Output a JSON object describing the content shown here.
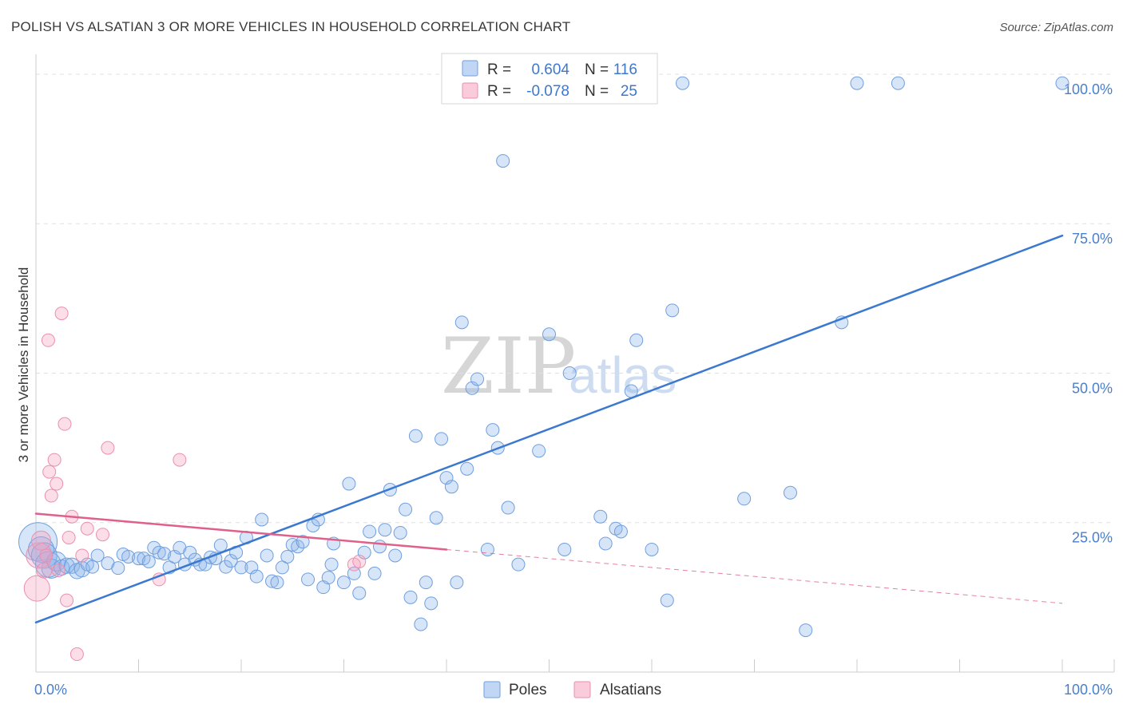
{
  "header": {
    "title": "POLISH VS ALSATIAN 3 OR MORE VEHICLES IN HOUSEHOLD CORRELATION CHART",
    "source": "Source: ZipAtlas.com"
  },
  "watermark": {
    "zip": "ZIP",
    "atlas": "atlas"
  },
  "colors": {
    "blue": "#3b78cf",
    "blue_fill": "rgba(140,180,235,0.35)",
    "blue_stroke": "#6f9fdf",
    "pink": "#e0608a",
    "pink_fill": "rgba(245,160,190,0.35)",
    "pink_stroke": "#eb8fb0",
    "grid": "#e0e0e0",
    "axis": "#cccccc"
  },
  "legend": {
    "rows": [
      {
        "r_label": "R =",
        "r_value": "0.604",
        "n_label": "N =",
        "n_value": "116",
        "series": "blue"
      },
      {
        "r_label": "R =",
        "r_value": "-0.078",
        "n_label": "N =",
        "n_value": "25",
        "series": "pink"
      }
    ]
  },
  "chart_data": {
    "type": "scatter",
    "title": "POLISH VS ALSATIAN 3 OR MORE VEHICLES IN HOUSEHOLD CORRELATION CHART",
    "xlabel": "",
    "ylabel": "3 or more Vehicles in Household",
    "xlim": [
      0,
      100
    ],
    "ylim": [
      0,
      102
    ],
    "x_tick_labels": [
      "0.0%",
      "100.0%"
    ],
    "y_ticks": [
      25,
      50,
      75,
      100
    ],
    "y_tick_labels": [
      "25.0%",
      "50.0%",
      "75.0%",
      "100.0%"
    ],
    "grid": true,
    "legend_placement": "bottom-center",
    "series": [
      {
        "name": "Poles",
        "color": "blue",
        "trend": {
          "x": [
            0,
            100
          ],
          "y": [
            8.3,
            73
          ]
        },
        "points": [
          [
            0.2,
            21.8,
            3
          ],
          [
            0.5,
            20.5,
            2
          ],
          [
            0.8,
            19.5,
            2
          ],
          [
            1.2,
            18.0,
            2
          ],
          [
            1.5,
            17.3,
            1.5
          ],
          [
            2.0,
            18.5,
            1.5
          ],
          [
            2.5,
            17.5,
            1.2
          ],
          [
            3.0,
            17.8,
            1.2
          ],
          [
            3.5,
            17.8,
            1.2
          ],
          [
            4.0,
            16.9,
            1.2
          ],
          [
            4.5,
            17.2,
            1.2
          ],
          [
            5.0,
            18.0,
            1
          ],
          [
            5.5,
            17.6,
            1
          ],
          [
            6.0,
            19.5,
            1
          ],
          [
            7.0,
            18.2,
            1
          ],
          [
            8.0,
            17.4,
            1
          ],
          [
            8.5,
            19.7,
            1
          ],
          [
            9.0,
            19.3,
            1
          ],
          [
            10.0,
            19.0,
            1
          ],
          [
            10.5,
            19.0,
            1
          ],
          [
            11.0,
            18.5,
            1
          ],
          [
            11.5,
            20.8,
            1
          ],
          [
            12.0,
            20.0,
            1
          ],
          [
            12.5,
            19.8,
            1
          ],
          [
            13.0,
            17.5,
            1
          ],
          [
            13.5,
            19.3,
            1
          ],
          [
            14.0,
            20.8,
            1
          ],
          [
            14.5,
            18.0,
            1
          ],
          [
            15.0,
            20.0,
            1
          ],
          [
            15.5,
            18.8,
            1
          ],
          [
            16.0,
            18.0,
            1
          ],
          [
            16.5,
            18.0,
            1
          ],
          [
            17.0,
            19.2,
            1
          ],
          [
            17.5,
            19.0,
            1
          ],
          [
            18.0,
            21.2,
            1
          ],
          [
            18.5,
            17.6,
            1
          ],
          [
            19.0,
            18.6,
            1
          ],
          [
            19.5,
            20.0,
            1
          ],
          [
            20.0,
            17.5,
            1
          ],
          [
            20.5,
            22.5,
            1
          ],
          [
            21.0,
            17.5,
            1
          ],
          [
            21.5,
            16.0,
            1
          ],
          [
            22.0,
            25.5,
            1
          ],
          [
            22.5,
            19.5,
            1
          ],
          [
            23.0,
            15.2,
            1
          ],
          [
            23.5,
            15.0,
            1
          ],
          [
            24.0,
            17.5,
            1
          ],
          [
            24.5,
            19.3,
            1
          ],
          [
            25.0,
            21.3,
            1
          ],
          [
            25.5,
            21.0,
            1
          ],
          [
            26.0,
            21.8,
            1
          ],
          [
            26.5,
            15.5,
            1
          ],
          [
            27.0,
            24.5,
            1
          ],
          [
            27.5,
            25.5,
            1
          ],
          [
            28.0,
            14.2,
            1
          ],
          [
            28.5,
            15.8,
            1
          ],
          [
            28.8,
            18.0,
            1
          ],
          [
            29.0,
            21.5,
            1
          ],
          [
            30.0,
            15.0,
            1
          ],
          [
            30.5,
            31.5,
            1
          ],
          [
            31.0,
            16.5,
            1
          ],
          [
            31.5,
            13.2,
            1
          ],
          [
            32.0,
            20.0,
            1
          ],
          [
            32.5,
            23.5,
            1
          ],
          [
            33.0,
            16.5,
            1
          ],
          [
            33.5,
            21.0,
            1
          ],
          [
            34.0,
            23.8,
            1
          ],
          [
            34.5,
            30.5,
            1
          ],
          [
            35.0,
            19.5,
            1
          ],
          [
            35.5,
            23.3,
            1
          ],
          [
            36.0,
            27.2,
            1
          ],
          [
            36.5,
            12.5,
            1
          ],
          [
            37.0,
            39.5,
            1
          ],
          [
            37.5,
            8.0,
            1
          ],
          [
            38.0,
            15.0,
            1
          ],
          [
            38.5,
            11.5,
            1
          ],
          [
            39.0,
            25.8,
            1
          ],
          [
            39.5,
            39.0,
            1
          ],
          [
            40.0,
            32.5,
            1
          ],
          [
            40.5,
            31.0,
            1
          ],
          [
            41.0,
            15.0,
            1
          ],
          [
            41.5,
            58.5,
            1
          ],
          [
            42.0,
            34.0,
            1
          ],
          [
            42.5,
            47.5,
            1
          ],
          [
            43.0,
            49.0,
            1
          ],
          [
            44.0,
            20.5,
            1
          ],
          [
            44.5,
            40.5,
            1
          ],
          [
            45.0,
            37.5,
            1
          ],
          [
            45.5,
            85.5,
            1
          ],
          [
            46.0,
            27.5,
            1
          ],
          [
            47.0,
            18.0,
            1
          ],
          [
            48.0,
            98.5,
            1
          ],
          [
            49.0,
            37.0,
            1
          ],
          [
            50.0,
            56.5,
            1
          ],
          [
            51.0,
            98.5,
            1
          ],
          [
            51.5,
            20.5,
            1
          ],
          [
            52.0,
            50.0,
            1
          ],
          [
            53.5,
            98.5,
            1
          ],
          [
            55.0,
            26.0,
            1
          ],
          [
            55.5,
            21.5,
            1
          ],
          [
            56.5,
            24.0,
            1
          ],
          [
            57.0,
            23.5,
            1
          ],
          [
            58.0,
            47.0,
            1
          ],
          [
            58.5,
            55.5,
            1
          ],
          [
            60.0,
            20.5,
            1
          ],
          [
            61.5,
            12.0,
            1
          ],
          [
            62.0,
            60.5,
            1
          ],
          [
            63.0,
            98.5,
            1
          ],
          [
            69.0,
            29.0,
            1
          ],
          [
            73.5,
            30.0,
            1
          ],
          [
            75.0,
            7.0,
            1
          ],
          [
            78.5,
            58.5,
            1
          ],
          [
            80.0,
            98.5,
            1
          ],
          [
            84.0,
            98.5,
            1
          ],
          [
            100.0,
            98.5,
            1
          ]
        ]
      },
      {
        "name": "Alsatians",
        "color": "pink",
        "trend": {
          "x": [
            0,
            40
          ],
          "y": [
            26.5,
            20.5
          ],
          "dash_to": [
            100,
            11.5
          ]
        },
        "points": [
          [
            0.1,
            14.0,
            2
          ],
          [
            0.3,
            19.5,
            2
          ],
          [
            0.5,
            22.0,
            1.5
          ],
          [
            0.8,
            17.0,
            1.2
          ],
          [
            1.0,
            19.5,
            1
          ],
          [
            1.2,
            55.5,
            1
          ],
          [
            1.3,
            33.5,
            1
          ],
          [
            1.5,
            29.5,
            1
          ],
          [
            1.8,
            35.5,
            1
          ],
          [
            2.0,
            31.5,
            1
          ],
          [
            2.2,
            17.0,
            1
          ],
          [
            2.5,
            60.0,
            1
          ],
          [
            2.8,
            41.5,
            1
          ],
          [
            3.0,
            12.0,
            1
          ],
          [
            3.2,
            22.5,
            1
          ],
          [
            3.5,
            26.0,
            1
          ],
          [
            4.0,
            3.0,
            1
          ],
          [
            4.5,
            19.5,
            1
          ],
          [
            5.0,
            24.0,
            1
          ],
          [
            6.5,
            23.0,
            1
          ],
          [
            7.0,
            37.5,
            1
          ],
          [
            12.0,
            15.5,
            1
          ],
          [
            14.0,
            35.5,
            1
          ],
          [
            31.0,
            18.0,
            1
          ],
          [
            31.5,
            18.5,
            1
          ]
        ]
      }
    ]
  },
  "bottom_legend": [
    {
      "label": "Poles",
      "series": "blue"
    },
    {
      "label": "Alsatians",
      "series": "pink"
    }
  ]
}
